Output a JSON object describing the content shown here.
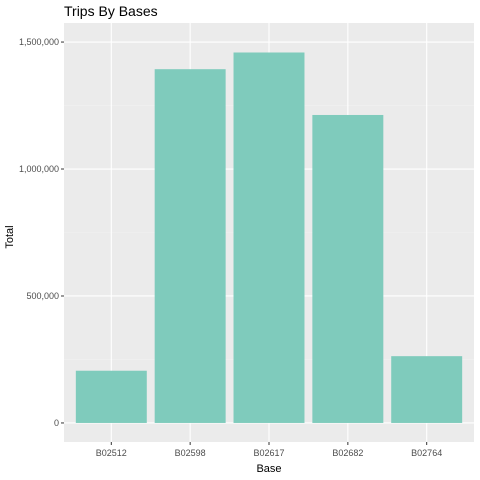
{
  "chart_data": {
    "type": "bar",
    "title": "Trips By Bases",
    "xlabel": "Base",
    "ylabel": "Total",
    "categories": [
      "B02512",
      "B02598",
      "B02617",
      "B02682",
      "B02764"
    ],
    "values": [
      205673,
      1393113,
      1458853,
      1212789,
      262995
    ],
    "ylim": [
      -75000,
      1575000
    ],
    "yticks": [
      0,
      500000,
      1000000,
      1500000
    ],
    "ytick_labels": [
      "0",
      "500,000",
      "1,000,000",
      "1,500,000"
    ],
    "grid": true,
    "legend": "none",
    "colors": {
      "bar": "#7FCBBC",
      "panel_background": "#EBEBEB",
      "grid_major": "#FFFFFF",
      "grid_minor": "#F2F2F2",
      "tick_mark": "#333333",
      "tick_text": "#4D4D4D"
    }
  }
}
